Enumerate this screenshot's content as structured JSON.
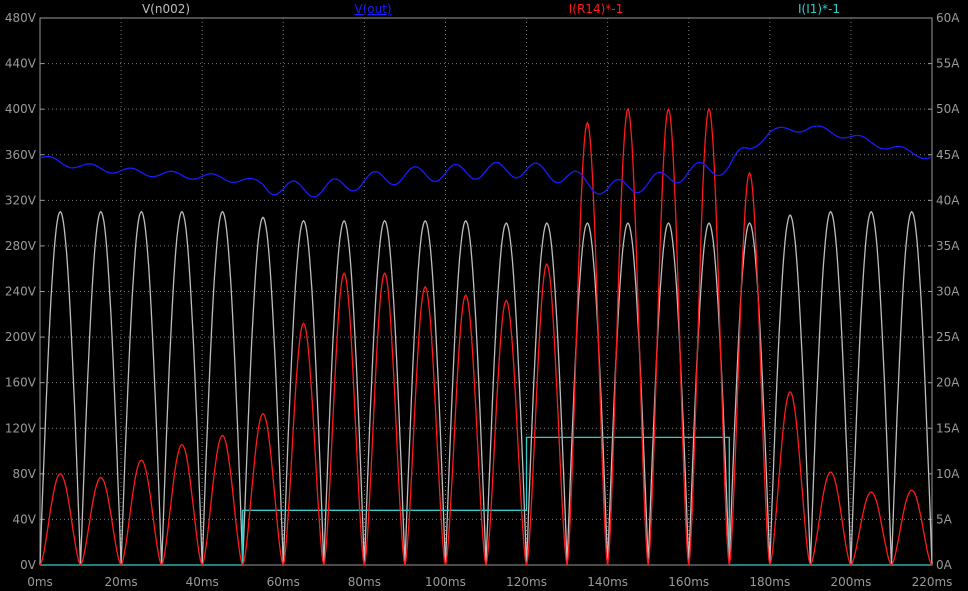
{
  "chart_data": {
    "type": "line",
    "xlabel_ticks": [
      "0ms",
      "20ms",
      "40ms",
      "60ms",
      "80ms",
      "100ms",
      "120ms",
      "140ms",
      "160ms",
      "180ms",
      "200ms",
      "220ms"
    ],
    "yleft_ticks": [
      "0V",
      "40V",
      "80V",
      "120V",
      "160V",
      "200V",
      "240V",
      "280V",
      "320V",
      "360V",
      "400V",
      "440V",
      "480V"
    ],
    "yright_ticks": [
      "0A",
      "5A",
      "10A",
      "15A",
      "20A",
      "25A",
      "30A",
      "35A",
      "40A",
      "45A",
      "50A",
      "55A",
      "60A"
    ],
    "xlim": [
      0,
      220
    ],
    "ylim_left": [
      0,
      480
    ],
    "ylim_right": [
      0,
      60
    ],
    "grid": true,
    "colors": {
      "background": "#000000",
      "axis": "#9a9a9a",
      "grid": "#7a7a7a",
      "v_n002": "#bdbdbd",
      "v_out": "#1a1aff",
      "i_r14": "#ff1a1a",
      "i_i1": "#33cccc"
    },
    "series": [
      {
        "name": "V(n002)",
        "axis": "left",
        "kind": "rectified_sine",
        "period_ms": 10,
        "peaks_V": [
          310,
          310,
          310,
          310,
          310,
          305,
          302,
          302,
          302,
          302,
          302,
          300,
          300,
          300,
          300,
          300,
          300,
          300,
          307,
          310,
          310,
          310
        ]
      },
      {
        "name": "V(out)",
        "axis": "left",
        "kind": "line",
        "x": [
          0,
          10,
          20,
          30,
          40,
          50,
          60,
          70,
          80,
          90,
          100,
          110,
          120,
          130,
          140,
          150,
          160,
          170,
          180,
          190,
          200,
          210,
          220
        ],
        "y": [
          357,
          350,
          346,
          343,
          341,
          338,
          330,
          330,
          337,
          342,
          344,
          346,
          347,
          341,
          330,
          335,
          345,
          350,
          380,
          384,
          376,
          366,
          358
        ]
      },
      {
        "name": "I(R14)*-1",
        "axis": "right",
        "kind": "rectified_pulse",
        "period_ms": 10,
        "peaks_A": [
          10,
          9.6,
          11.5,
          13.2,
          14.2,
          16.6,
          26.5,
          32,
          32,
          30.5,
          29.6,
          29,
          33,
          48.5,
          50,
          50,
          50,
          43,
          19,
          10.2,
          8,
          8.2
        ]
      },
      {
        "name": "I(I1)*-1",
        "axis": "right",
        "kind": "step",
        "x": [
          0,
          50,
          50,
          120,
          120,
          170,
          170,
          220
        ],
        "y": [
          0,
          0,
          6,
          6,
          14,
          14,
          0,
          0
        ]
      }
    ]
  }
}
